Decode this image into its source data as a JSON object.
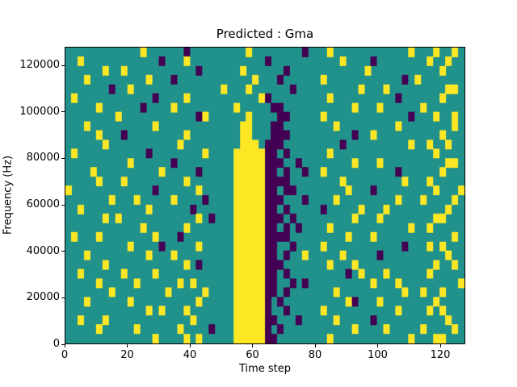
{
  "figure": {
    "title": "Predicted : Gma"
  },
  "chart_data": {
    "type": "heatmap",
    "title": "Predicted : Gma",
    "xlabel": "Time step",
    "ylabel": "Frequency (Hz)",
    "xlim": [
      0,
      128
    ],
    "ylim": [
      0,
      128000
    ],
    "xticks": [
      0,
      20,
      40,
      60,
      80,
      100,
      120
    ],
    "yticks": [
      0,
      20000,
      40000,
      60000,
      80000,
      100000,
      120000
    ],
    "grid": false,
    "legend_position": "none",
    "colormap": {
      "name": "viridis",
      "0": "#21918c",
      "1": "#fde725",
      "2": "#440154"
    },
    "grid_cols": 64,
    "grid_rows": 32,
    "rows_top_to_bottom": [
      "0000000000001000000200000000010000000020001000000000000100010010",
      "0010000000000002000100000000000020000000000010000200000000100100",
      "0000001001000000000002000000100000020000000000001000000000001000",
      "0001000000000100020000000000001000200000010000000000002010000000",
      "0000000200100000000000000100010000002000000000010001000000000110",
      "0100000000000020000100000000000120000000001000000000020000001000",
      "0000010000002000010000000001000002200000000000100010000001000000",
      "0000000010000000000002100000010000220000010000000000000200010010",
      "0001000000000010000000000000110002200000000100000000010000000010",
      "0000010002000000000100000000110002220000000000200100000000001000",
      "0000001000000000001000000000111022200000000020000000000100100100",
      "0100000000000200000000100001111122020000001000000000000000010000",
      "0000000000100000020000000001111122200200000000100010000000000110",
      "0000100000000001000002000001111122020020010000000000020000001000",
      "0000010001000000000100000001111122220000000010000000001000100000",
      "1000000000000020000001000001111122022000000001000200000000010001",
      "0000000100010000010000200001111122200020000100000000010001000010",
      "0010000000000100000020000001111122020000020000010001000000000100",
      "0000001010000000000001020001111122202000000000100010000000011000",
      "0000000000001000000100000001111122020200001000000000000100100000",
      "0100010000000010002000000001111122220000000001000100000000000010",
      "0000000000100002000001000001111122002000010000000000002000101000",
      "0001000000000100010000000001111122020010000010000020000000000100",
      "0000001000000000000102000001111122200000001000100000000000010010",
      "0010000001000010000000000001111122020000000002010001000000100000",
      "0000010000010000001010000001111122002020000000000100010000000001",
      "0000000100000000100000100001111122020000000100000000001001001000",
      "0001000000100000000001000001111120200000000001200010000000010000",
      "0000000000000101000100000001111120020000010000000000010000101000",
      "0010001000000000000010000001111122000200000100000200000000000100",
      "0000010000010000001000020001111120200000000000100001000001000010",
      "0000000000000010000101000001111122000000001000000000000100011000"
    ]
  }
}
